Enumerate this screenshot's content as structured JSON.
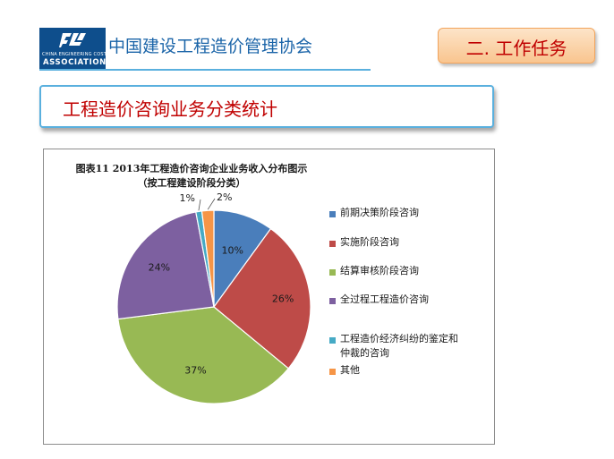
{
  "header": {
    "logo_line1": "CHINA ENGINEERING COST",
    "logo_line2": "ASSOCIATION",
    "org_name": "中国建设工程造价管理协会",
    "section_tab": "二. 工作任务"
  },
  "page_title": "工程造价咨询业务分类统计",
  "colors": {
    "accent_blue": "#0e4e8c",
    "rule_blue": "#5ab0de",
    "title_red": "#c00000"
  },
  "chart_data": {
    "type": "pie",
    "title_line1": "图表11   2013年工程造价咨询企业业务收入分布图示",
    "title_line2": "（按工程建设阶段分类）",
    "legend_position": "right",
    "start_angle_deg": 0,
    "direction": "clockwise",
    "slices": [
      {
        "name": "前期决策阶段咨询",
        "value": 10,
        "label": "10%",
        "color": "#4a7ebb"
      },
      {
        "name": "实施阶段咨询",
        "value": 26,
        "label": "26%",
        "color": "#be4b48"
      },
      {
        "name": "结算审核阶段咨询",
        "value": 37,
        "label": "37%",
        "color": "#98b954"
      },
      {
        "name": "全过程工程造价咨询",
        "value": 24,
        "label": "24%",
        "color": "#7d60a0"
      },
      {
        "name": "工程造价经济纠纷的鉴定和仲裁的咨询",
        "value": 1,
        "label": "1%",
        "color": "#46aac5"
      },
      {
        "name": "其他",
        "value": 2,
        "label": "2%",
        "color": "#f69546"
      }
    ],
    "legend_lines": [
      [
        "前期决策阶段咨询"
      ],
      [
        "实施阶段咨询"
      ],
      [
        "结算审核阶段咨询"
      ],
      [
        "全过程工程造价咨询"
      ],
      [
        "工程造价经济纠纷的鉴定和",
        "仲裁的咨询"
      ],
      [
        "其他"
      ]
    ]
  }
}
